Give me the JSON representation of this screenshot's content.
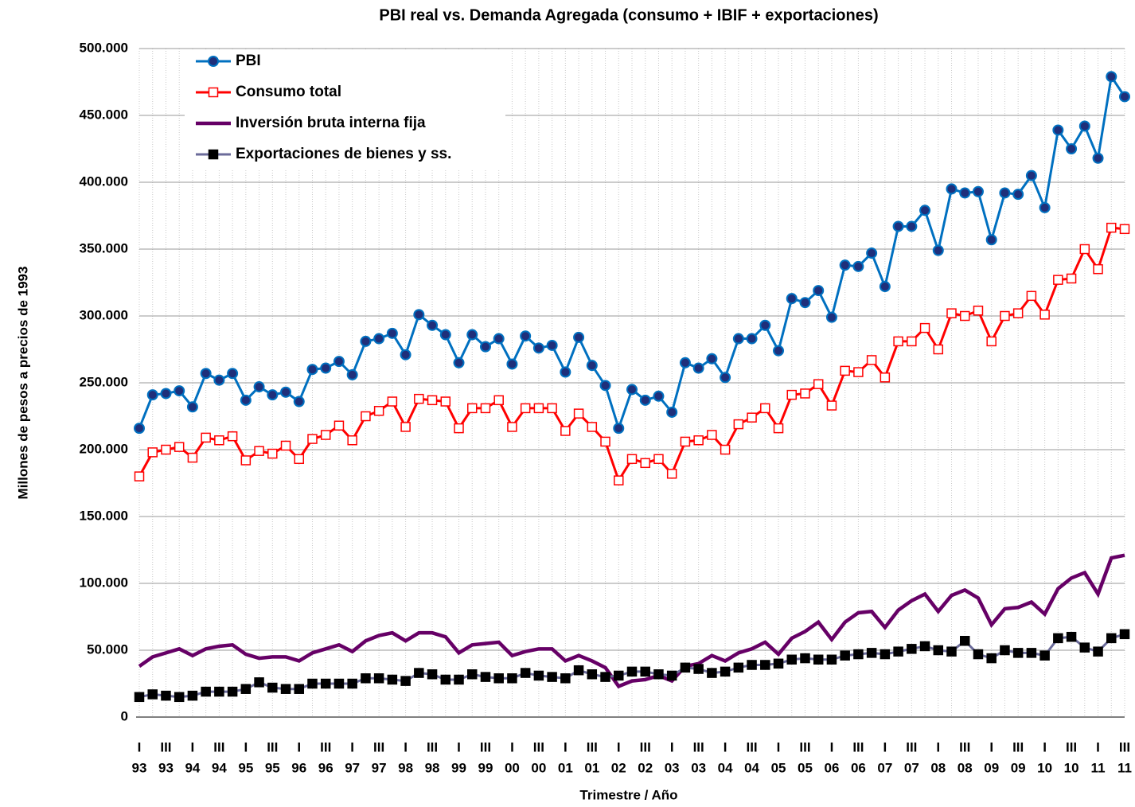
{
  "chart_data": {
    "type": "line",
    "title": "PBI  real vs. Demanda Agregada (consumo + IBIF + exportaciones)",
    "x_label": "Trimestre / Año",
    "y_label": "Millones de pesos a precios de 1993",
    "categories": [
      [
        "I",
        "93"
      ],
      null,
      [
        "III",
        "93"
      ],
      null,
      [
        "I",
        "94"
      ],
      null,
      [
        "III",
        "94"
      ],
      null,
      [
        "I",
        "95"
      ],
      null,
      [
        "III",
        "95"
      ],
      null,
      [
        "I",
        "96"
      ],
      null,
      [
        "III",
        "96"
      ],
      null,
      [
        "I",
        "97"
      ],
      null,
      [
        "III",
        "97"
      ],
      null,
      [
        "I",
        "98"
      ],
      null,
      [
        "III",
        "98"
      ],
      null,
      [
        "I",
        "99"
      ],
      null,
      [
        "III",
        "99"
      ],
      null,
      [
        "I",
        "00"
      ],
      null,
      [
        "III",
        "00"
      ],
      null,
      [
        "I",
        "01"
      ],
      null,
      [
        "III",
        "01"
      ],
      null,
      [
        "I",
        "02"
      ],
      null,
      [
        "III",
        "02"
      ],
      null,
      [
        "I",
        "03"
      ],
      null,
      [
        "III",
        "03"
      ],
      null,
      [
        "I",
        "04"
      ],
      null,
      [
        "III",
        "04"
      ],
      null,
      [
        "I",
        "05"
      ],
      null,
      [
        "III",
        "05"
      ],
      null,
      [
        "I",
        "06"
      ],
      null,
      [
        "III",
        "06"
      ],
      null,
      [
        "I",
        "07"
      ],
      null,
      [
        "III",
        "07"
      ],
      null,
      [
        "I",
        "08"
      ],
      null,
      [
        "III",
        "08"
      ],
      null,
      [
        "I",
        "09"
      ],
      null,
      [
        "III",
        "09"
      ],
      null,
      [
        "I",
        "10"
      ],
      null,
      [
        "III",
        "10"
      ],
      null,
      [
        "I",
        "11"
      ],
      null,
      [
        "III",
        "11"
      ]
    ],
    "ylim": [
      0,
      500000
    ],
    "yticks": [
      0,
      {
        "value": 50000,
        "label": "50.000"
      },
      {
        "value": 100000,
        "label": "100.000"
      },
      {
        "value": 150000,
        "label": "150.000"
      },
      {
        "value": 200000,
        "label": "200.000"
      },
      {
        "value": 250000,
        "label": "250.000"
      },
      {
        "value": 300000,
        "label": "300.000"
      },
      {
        "value": 350000,
        "label": "350.000"
      },
      {
        "value": 400000,
        "label": "400.000"
      },
      {
        "value": 450000,
        "label": "450.000"
      },
      {
        "value": 500000,
        "label": "500.000"
      }
    ],
    "grid": true,
    "legend": "upper left",
    "series": [
      {
        "name": "PBI",
        "color": "#0070c0",
        "marker": "circle",
        "marker_fill": "#1f2f7a",
        "values": [
          216000,
          241000,
          242000,
          244000,
          232000,
          257000,
          252000,
          257000,
          237000,
          247000,
          241000,
          243000,
          236000,
          260000,
          261000,
          266000,
          256000,
          281000,
          283000,
          287000,
          271000,
          301000,
          293000,
          286000,
          265000,
          286000,
          277000,
          283000,
          264000,
          285000,
          276000,
          278000,
          258000,
          284000,
          263000,
          248000,
          216000,
          245000,
          237000,
          240000,
          228000,
          265000,
          261000,
          268000,
          254000,
          283000,
          283000,
          293000,
          274000,
          313000,
          310000,
          319000,
          299000,
          338000,
          337000,
          347000,
          322000,
          367000,
          367000,
          379000,
          349000,
          395000,
          392000,
          393000,
          357000,
          392000,
          391000,
          405000,
          381000,
          439000,
          425000,
          442000,
          418000,
          479000,
          464000
        ]
      },
      {
        "name": "Consumo total",
        "color": "#ff0000",
        "marker": "square",
        "marker_fill": "#ffffff",
        "values": [
          180000,
          198000,
          200000,
          202000,
          194000,
          209000,
          207000,
          210000,
          192000,
          199000,
          197000,
          203000,
          193000,
          208000,
          211000,
          218000,
          207000,
          225000,
          229000,
          236000,
          217000,
          238000,
          237000,
          236000,
          216000,
          231000,
          231000,
          237000,
          217000,
          231000,
          231000,
          231000,
          214000,
          227000,
          217000,
          206000,
          177000,
          193000,
          190000,
          193000,
          182000,
          206000,
          207000,
          211000,
          200000,
          219000,
          224000,
          231000,
          216000,
          241000,
          242000,
          249000,
          233000,
          259000,
          258000,
          267000,
          254000,
          281000,
          281000,
          291000,
          275000,
          302000,
          300000,
          304000,
          281000,
          300000,
          302000,
          315000,
          301000,
          327000,
          328000,
          350000,
          335000,
          366000,
          365000
        ]
      },
      {
        "name": "Inversión bruta interna fija",
        "color": "#660066",
        "marker": "none",
        "values": [
          38000,
          45000,
          48000,
          51000,
          46000,
          51000,
          53000,
          54000,
          47000,
          44000,
          45000,
          45000,
          42000,
          48000,
          51000,
          54000,
          49000,
          57000,
          61000,
          63000,
          57000,
          63000,
          63000,
          60000,
          48000,
          54000,
          55000,
          56000,
          46000,
          49000,
          51000,
          51000,
          42000,
          46000,
          42000,
          37000,
          23000,
          27000,
          28000,
          31000,
          27000,
          38000,
          40000,
          46000,
          42000,
          48000,
          51000,
          56000,
          47000,
          59000,
          64000,
          71000,
          58000,
          71000,
          78000,
          79000,
          67000,
          80000,
          87000,
          92000,
          79000,
          91000,
          95000,
          89000,
          69000,
          81000,
          82000,
          86000,
          77000,
          96000,
          104000,
          108000,
          92000,
          119000,
          121000
        ]
      },
      {
        "name": "Exportaciones de bienes y ss.",
        "color": "#6b6b9a",
        "marker": "square",
        "marker_fill": "#000000",
        "values": [
          15000,
          17000,
          16000,
          15000,
          16000,
          19000,
          19000,
          19000,
          21000,
          26000,
          22000,
          21000,
          21000,
          25000,
          25000,
          25000,
          25000,
          29000,
          29000,
          28000,
          27000,
          33000,
          32000,
          28000,
          28000,
          32000,
          30000,
          29000,
          29000,
          33000,
          31000,
          30000,
          29000,
          35000,
          32000,
          30000,
          31000,
          34000,
          34000,
          32000,
          31000,
          37000,
          36000,
          33000,
          34000,
          37000,
          39000,
          39000,
          40000,
          43000,
          44000,
          43000,
          43000,
          46000,
          47000,
          48000,
          47000,
          49000,
          51000,
          53000,
          50000,
          49000,
          57000,
          47000,
          44000,
          50000,
          48000,
          48000,
          46000,
          59000,
          60000,
          52000,
          49000,
          59000,
          62000
        ]
      }
    ]
  }
}
